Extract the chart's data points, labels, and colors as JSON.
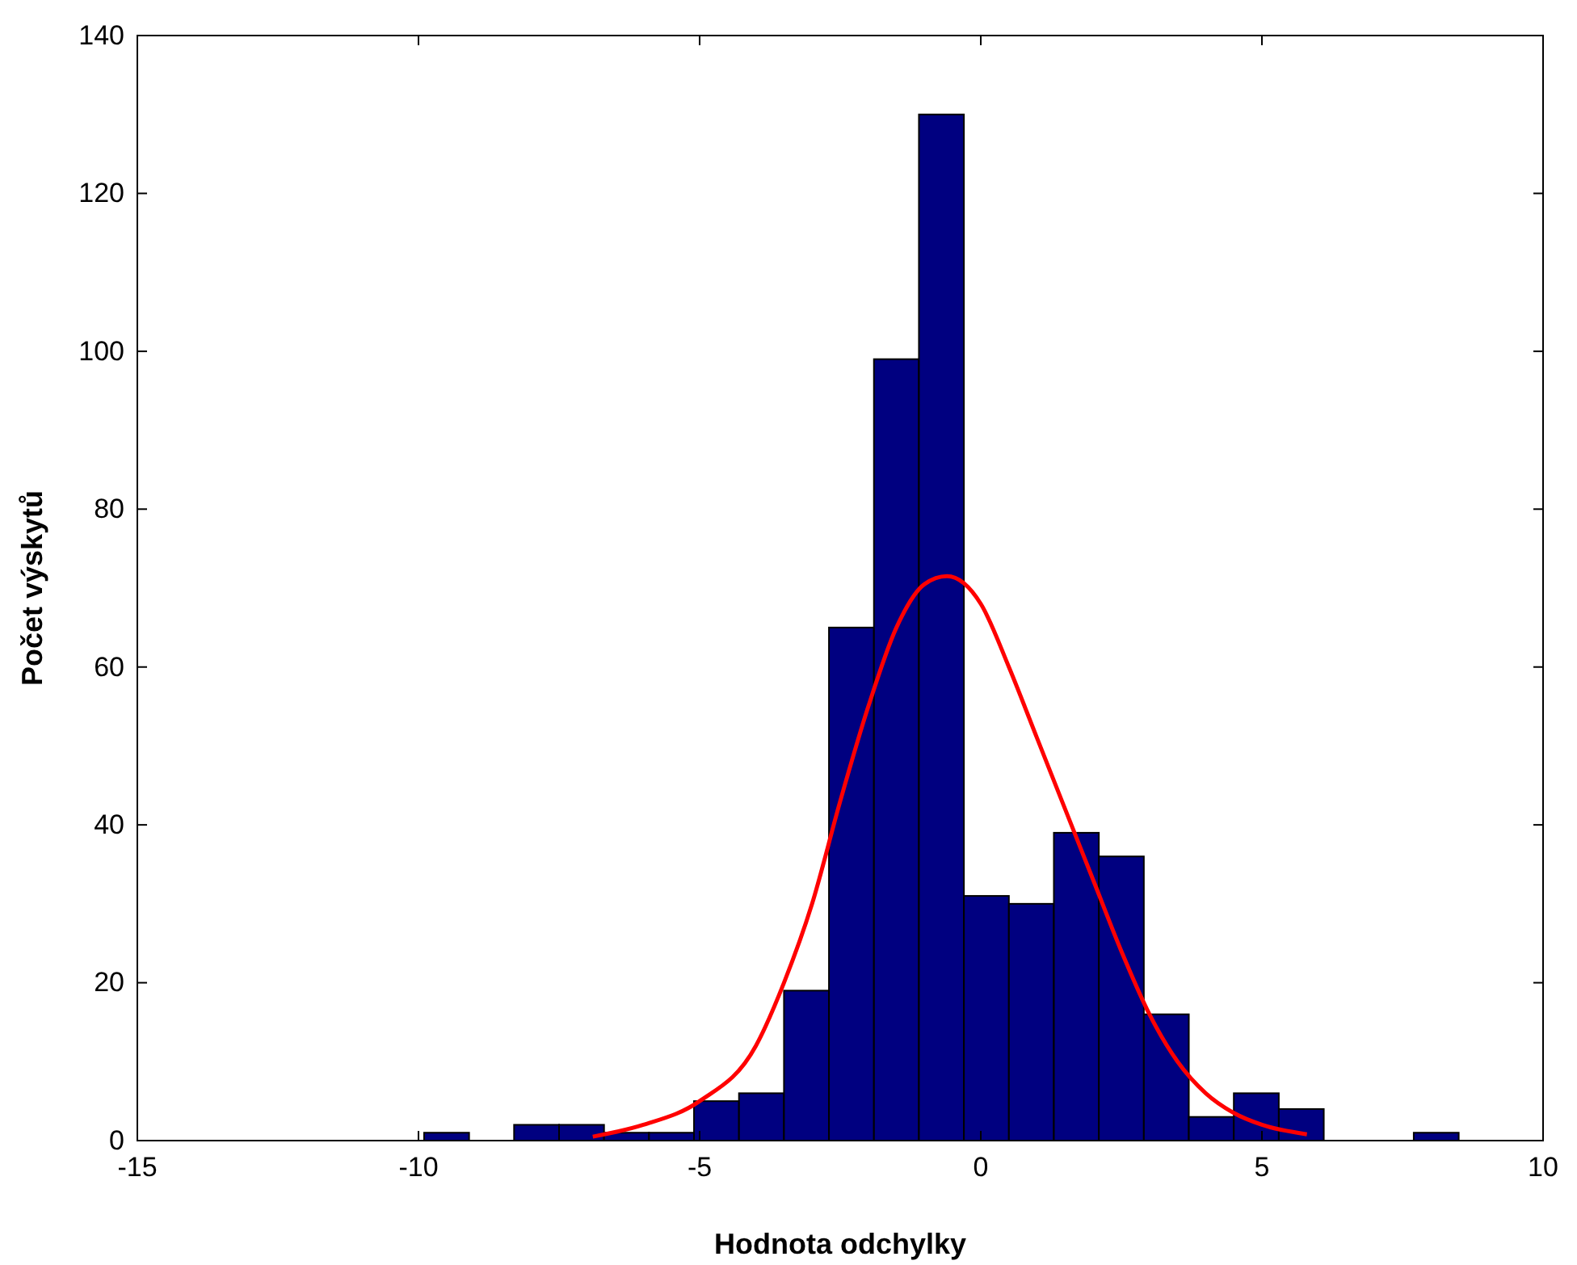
{
  "chart_data": {
    "type": "histogram",
    "xlabel": "Hodnota odchylky",
    "ylabel": "Počet výskytů",
    "bins": [
      -9.9,
      -9.1,
      -8.3,
      -7.5,
      -6.7,
      -5.9,
      -5.1,
      -4.3,
      -3.5,
      -2.7,
      -1.9,
      -1.1,
      -0.3,
      0.5,
      1.3,
      2.1,
      2.9,
      3.7,
      4.5,
      5.3,
      6.1,
      6.9,
      7.7,
      8.5
    ],
    "values": [
      1,
      0,
      2,
      2,
      1,
      1,
      5,
      6,
      19,
      65,
      99,
      130,
      31,
      30,
      39,
      36,
      16,
      3,
      6,
      4,
      0,
      0,
      1
    ],
    "color": "#000080",
    "series": [
      {
        "type": "line",
        "color": "#ff0000",
        "x": [
          -6.9,
          -6,
          -5,
          -4,
          -3.5,
          -3,
          -2.5,
          -2,
          -1.5,
          -1,
          -0.6,
          0,
          0.5,
          1,
          1.5,
          2,
          2.5,
          3,
          3.5,
          4,
          4.5,
          5,
          5.8
        ],
        "values": [
          0.5,
          2,
          5,
          12,
          20,
          30,
          43,
          55,
          65,
          70.5,
          71.5,
          68,
          60,
          51,
          42,
          33,
          24,
          16,
          10,
          6,
          3.5,
          2,
          0.8
        ]
      }
    ],
    "xlim": [
      -15,
      10
    ],
    "xticks": [
      -15,
      -10,
      -5,
      0,
      5,
      10
    ],
    "ylim": [
      0,
      140
    ],
    "yticks": [
      0,
      20,
      40,
      60,
      80,
      100,
      120,
      140
    ],
    "grid": false
  }
}
